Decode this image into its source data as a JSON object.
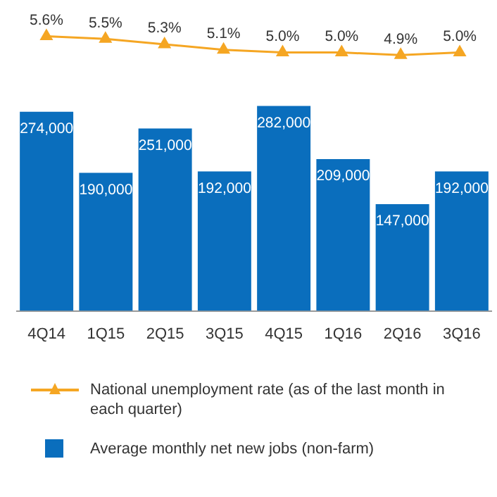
{
  "chart_data": [
    {
      "type": "line",
      "categories": [
        null,
        null,
        null,
        null,
        null,
        null,
        null,
        null
      ],
      "series": [
        {
          "name": "National unemployment rate (as of the last month in each quarter)",
          "color": "#f5a623",
          "values": [
            5.6,
            5.5,
            5.3,
            5.1,
            5.0,
            5.0,
            4.9,
            5.0
          ],
          "value_labels": [
            "5.6%",
            "5.5%",
            "5.3%",
            "5.1%",
            "5.0%",
            "5.0%",
            "4.9%",
            "5.0%"
          ]
        }
      ],
      "marker": "triangle",
      "legend": "bottom",
      "tick_labels": false,
      "grid": false
    },
    {
      "type": "bar",
      "categories": [
        "4Q14",
        "1Q15",
        "2Q15",
        "3Q15",
        "4Q15",
        "1Q16",
        "2Q16",
        "3Q16"
      ],
      "series": [
        {
          "name": "Average monthly net new jobs (non-farm)",
          "color": "#0a6ebd",
          "values": [
            274000,
            190000,
            251000,
            192000,
            282000,
            209000,
            147000,
            192000
          ],
          "value_labels": [
            "274,000",
            "190,000",
            "251,000",
            "192,000",
            "282,000",
            "209,000",
            "147,000",
            "192,000"
          ]
        }
      ],
      "legend": "bottom",
      "tick_labels": "x",
      "grid": false
    }
  ]
}
